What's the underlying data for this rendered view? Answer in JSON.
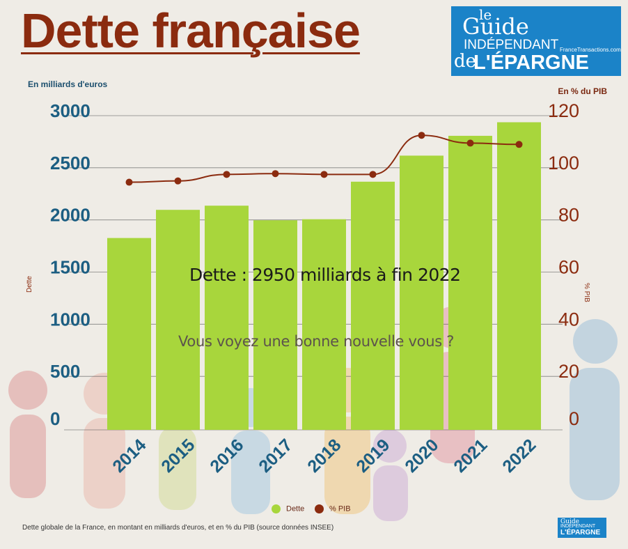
{
  "title": "Dette française",
  "logo": {
    "line1": "le",
    "line2": "Guide",
    "line3": "INDÉPENDANT",
    "line4": "de",
    "line5": "L'ÉPARGNE",
    "site": "FranceTransactions.com"
  },
  "unit_left": "En milliards d'euros",
  "unit_right": "En % du PIB",
  "annotation_main": "Dette : 2950 milliards à fin 2022",
  "annotation_sub": "Vous voyez une bonne nouvelle vous ?",
  "caption": "Dette globale de la France, en montant en milliards d'euros, et en % du PIB (source données INSEE)",
  "colors": {
    "bar": "#a8d63c",
    "line": "#8b2b0f",
    "left_axis": "#1c5e82",
    "right_axis": "#8b2b0f"
  },
  "chart_data": {
    "type": "bar",
    "categories": [
      "2014",
      "2015",
      "2016",
      "2017",
      "2018",
      "2019",
      "2020",
      "2021",
      "2022"
    ],
    "series": [
      {
        "name": "Dette",
        "type": "bar",
        "axis": "left",
        "values": [
          1840,
          2110,
          2150,
          2010,
          2020,
          2380,
          2630,
          2820,
          2950
        ]
      },
      {
        "name": "% PIB",
        "type": "line",
        "axis": "right",
        "values": [
          95,
          95.5,
          98,
          98.3,
          98,
          98,
          113,
          110,
          109.5
        ]
      }
    ],
    "xlabel": "",
    "ylabel": "Dette",
    "y2label": "% PIB",
    "ylim": [
      0,
      3000
    ],
    "y2lim": [
      0,
      120
    ],
    "yticks": [
      "0",
      "500",
      "1000",
      "1500",
      "2000",
      "2500",
      "3000"
    ],
    "y2ticks": [
      "0",
      "20",
      "40",
      "60",
      "80",
      "100",
      "120"
    ],
    "grid": true,
    "legend": {
      "position": "bottom",
      "entries": [
        "Dette",
        "% PIB"
      ]
    }
  }
}
